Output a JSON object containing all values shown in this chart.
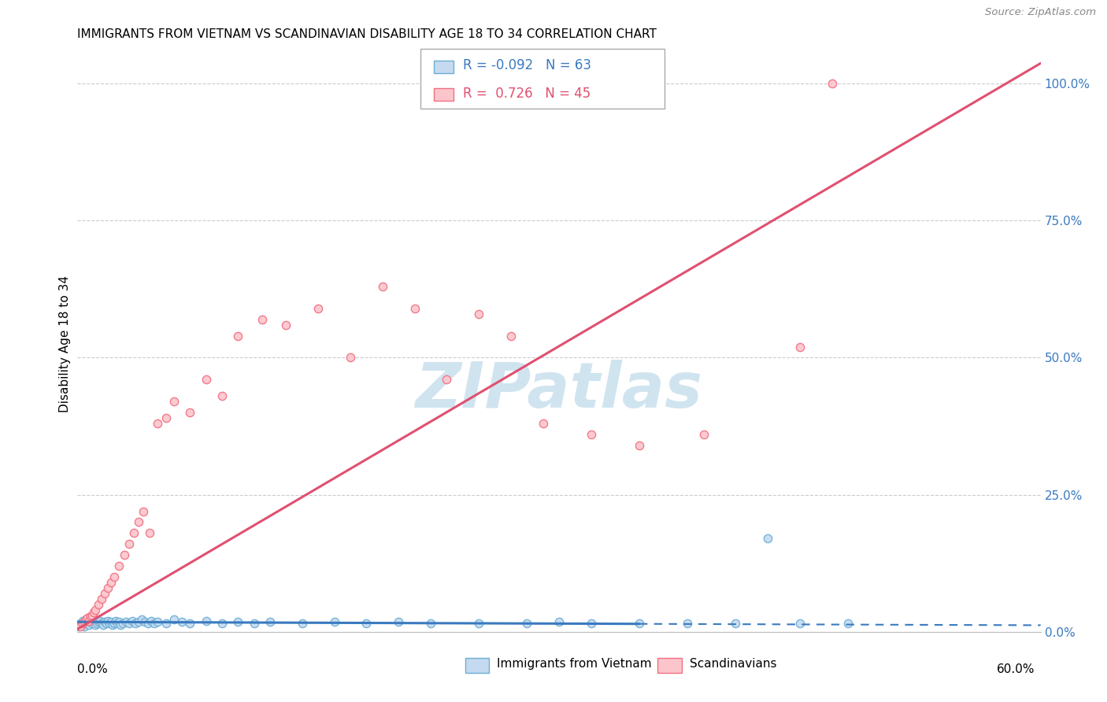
{
  "title": "IMMIGRANTS FROM VIETNAM VS SCANDINAVIAN DISABILITY AGE 18 TO 34 CORRELATION CHART",
  "source": "Source: ZipAtlas.com",
  "ylabel": "Disability Age 18 to 34",
  "legend_label1": "Immigrants from Vietnam",
  "legend_label2": "Scandinavians",
  "r1": -0.092,
  "n1": 63,
  "r2": 0.726,
  "n2": 45,
  "color_blue_face": "#c5daf0",
  "color_blue_edge": "#6baed6",
  "color_pink_face": "#fcc5cc",
  "color_pink_edge": "#f07080",
  "color_blue_line": "#3a7abf",
  "color_pink_line": "#e05070",
  "watermark_color": "#d0e4f0",
  "xlim": [
    0.0,
    0.6
  ],
  "ylim": [
    0.0,
    1.05
  ],
  "ytick_vals": [
    0.0,
    0.25,
    0.5,
    0.75,
    1.0
  ],
  "ytick_labels": [
    "0.0%",
    "25.0%",
    "50.0%",
    "75.0%",
    "100.0%"
  ],
  "xtick_left_label": "0.0%",
  "xtick_right_label": "60.0%",
  "blue_line_solid_end": 0.35,
  "blue_slope": -0.01,
  "blue_intercept": 0.018,
  "pink_slope": 1.72,
  "pink_intercept": 0.005,
  "blue_x": [
    0.001,
    0.002,
    0.003,
    0.004,
    0.005,
    0.006,
    0.007,
    0.008,
    0.009,
    0.01,
    0.011,
    0.012,
    0.013,
    0.014,
    0.015,
    0.016,
    0.017,
    0.018,
    0.019,
    0.02,
    0.021,
    0.022,
    0.023,
    0.024,
    0.025,
    0.026,
    0.027,
    0.028,
    0.03,
    0.032,
    0.034,
    0.036,
    0.038,
    0.04,
    0.042,
    0.044,
    0.046,
    0.048,
    0.05,
    0.055,
    0.06,
    0.065,
    0.07,
    0.08,
    0.09,
    0.1,
    0.11,
    0.12,
    0.14,
    0.16,
    0.18,
    0.2,
    0.22,
    0.25,
    0.28,
    0.3,
    0.32,
    0.35,
    0.38,
    0.41,
    0.43,
    0.45,
    0.48
  ],
  "blue_y": [
    0.01,
    0.015,
    0.02,
    0.01,
    0.015,
    0.018,
    0.012,
    0.02,
    0.015,
    0.018,
    0.012,
    0.015,
    0.018,
    0.02,
    0.015,
    0.012,
    0.018,
    0.015,
    0.02,
    0.015,
    0.018,
    0.012,
    0.015,
    0.02,
    0.015,
    0.018,
    0.012,
    0.016,
    0.018,
    0.015,
    0.02,
    0.015,
    0.018,
    0.022,
    0.018,
    0.015,
    0.02,
    0.016,
    0.018,
    0.015,
    0.022,
    0.018,
    0.015,
    0.02,
    0.016,
    0.018,
    0.015,
    0.018,
    0.015,
    0.018,
    0.015,
    0.018,
    0.015,
    0.016,
    0.015,
    0.018,
    0.015,
    0.016,
    0.015,
    0.016,
    0.17,
    0.015,
    0.016
  ],
  "pink_x": [
    0.002,
    0.003,
    0.004,
    0.005,
    0.006,
    0.007,
    0.008,
    0.009,
    0.01,
    0.011,
    0.013,
    0.015,
    0.017,
    0.019,
    0.021,
    0.023,
    0.026,
    0.029,
    0.032,
    0.035,
    0.038,
    0.041,
    0.045,
    0.05,
    0.055,
    0.06,
    0.07,
    0.08,
    0.09,
    0.1,
    0.115,
    0.13,
    0.15,
    0.17,
    0.19,
    0.21,
    0.23,
    0.25,
    0.27,
    0.29,
    0.32,
    0.35,
    0.39,
    0.45,
    0.47
  ],
  "pink_y": [
    0.01,
    0.015,
    0.018,
    0.022,
    0.025,
    0.02,
    0.028,
    0.03,
    0.035,
    0.04,
    0.05,
    0.06,
    0.07,
    0.08,
    0.09,
    0.1,
    0.12,
    0.14,
    0.16,
    0.18,
    0.2,
    0.22,
    0.18,
    0.38,
    0.39,
    0.42,
    0.4,
    0.46,
    0.43,
    0.54,
    0.57,
    0.56,
    0.59,
    0.5,
    0.63,
    0.59,
    0.46,
    0.58,
    0.54,
    0.38,
    0.36,
    0.34,
    0.36,
    0.52,
    1.0
  ]
}
